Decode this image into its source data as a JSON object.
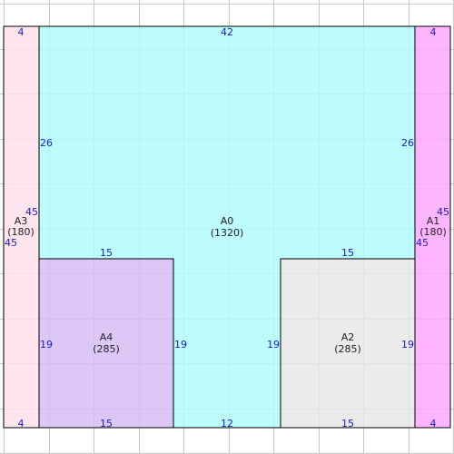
{
  "colors": {
    "grid": "#c9c9c9",
    "outline": "#000000",
    "dimension_text": "#1a1acc",
    "label_text": "#222222"
  },
  "rooms": [
    {
      "id": "A0",
      "name": "A0",
      "area": "(1320)",
      "fill": "#b0fcfc",
      "dims": {
        "top": "42",
        "left": "26",
        "right": "26",
        "bottom": "12",
        "lower_left": "19",
        "lower_right": "19",
        "step_left": "15",
        "step_right": "15"
      }
    },
    {
      "id": "A1",
      "name": "A1",
      "area": "(180)",
      "fill": "#ffa8ff",
      "dims": {
        "top": "4",
        "bottom": "4",
        "side_a": "45",
        "side_b": "45"
      }
    },
    {
      "id": "A2",
      "name": "A2",
      "area": "(285)",
      "fill": "#e8e8e8",
      "dims": {
        "top": "15",
        "bottom": "15",
        "left": "19",
        "right": "19"
      }
    },
    {
      "id": "A3",
      "name": "A3",
      "area": "(180)",
      "fill": "#ffe0ea",
      "dims": {
        "top": "4",
        "bottom": "4",
        "side_a": "45",
        "side_b": "45"
      }
    },
    {
      "id": "A4",
      "name": "A4",
      "area": "(285)",
      "fill": "#d7bdf5",
      "dims": {
        "top": "15",
        "bottom": "15",
        "left": "19",
        "right": "19"
      }
    }
  ]
}
